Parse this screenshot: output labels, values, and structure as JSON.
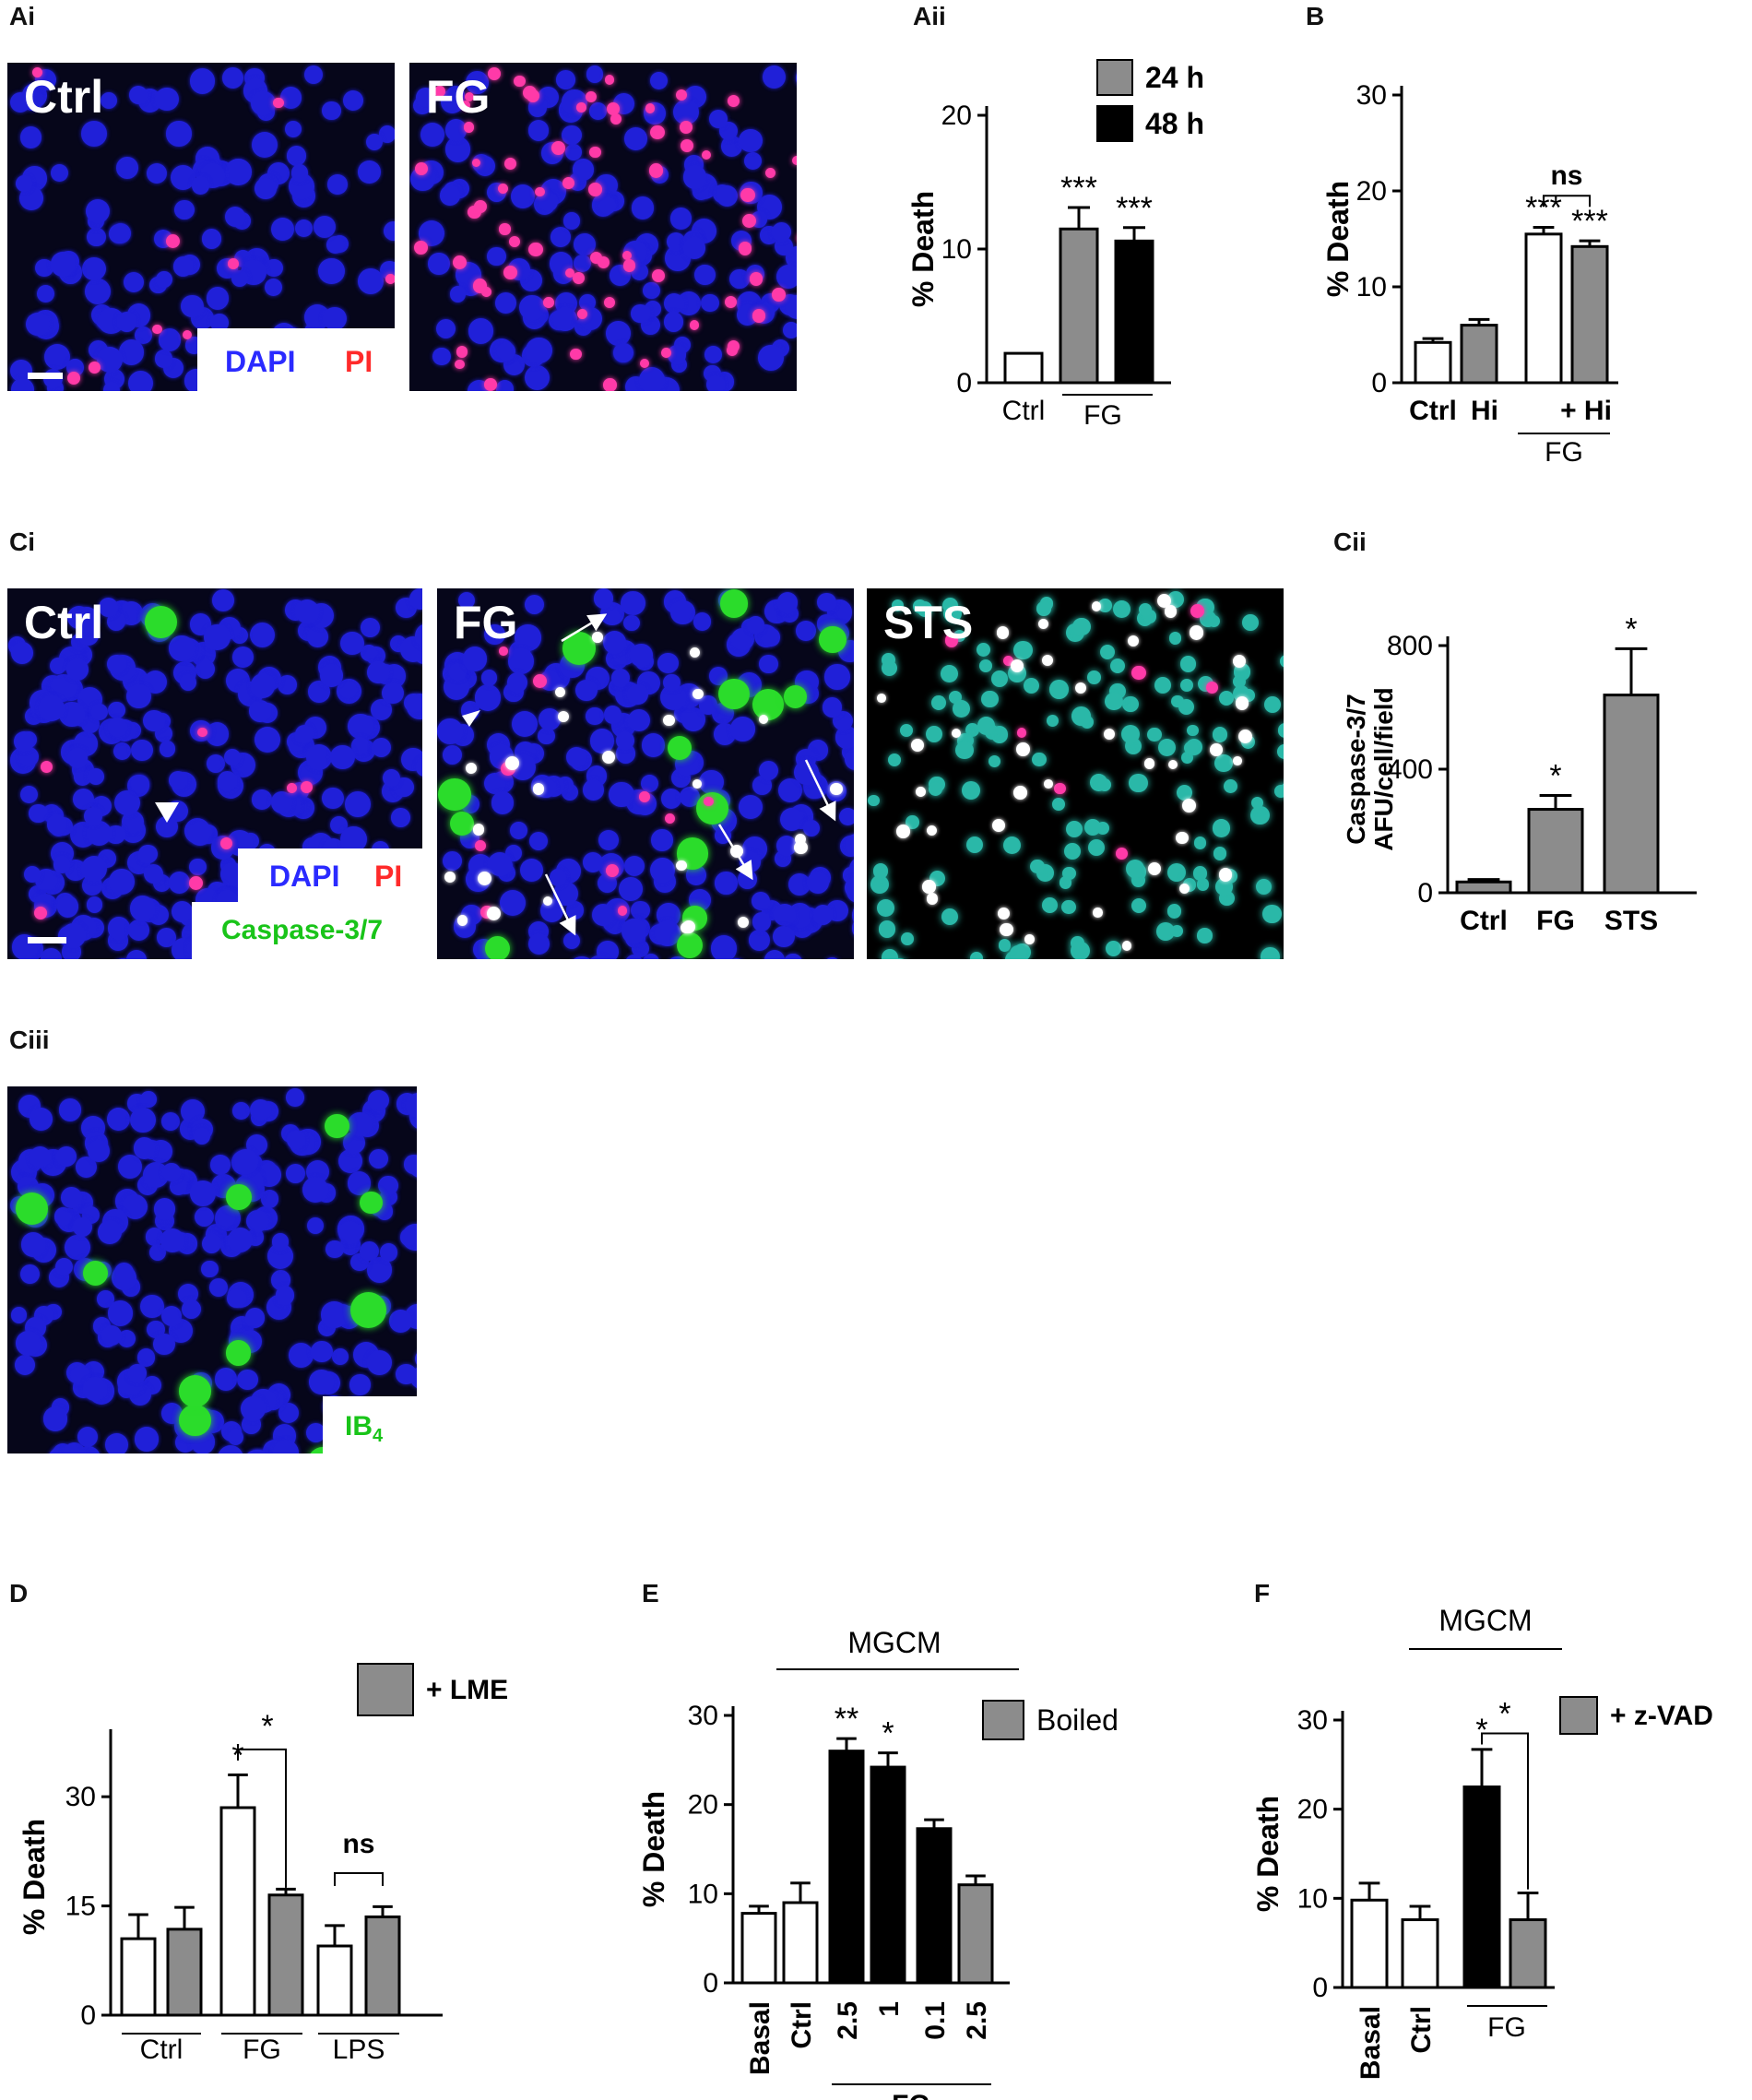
{
  "panel_labels": {
    "Ai": "Ai",
    "Aii": "Aii",
    "B": "B",
    "Ci": "Ci",
    "Cii": "Cii",
    "Ciii": "Ciii",
    "D": "D",
    "E": "E",
    "F": "F"
  },
  "micrographs": {
    "ai_ctrl": {
      "condition": "Ctrl"
    },
    "ai_fg": {
      "condition": "FG"
    },
    "ai_legend": {
      "dapi": "DAPI",
      "pi": "PI"
    },
    "ci_ctrl": {
      "condition": "Ctrl"
    },
    "ci_fg": {
      "condition": "FG"
    },
    "ci_sts": {
      "condition": "STS"
    },
    "ci_legend": {
      "dapi": "DAPI",
      "pi": "PI",
      "caspase": "Caspase-3/7"
    },
    "ciii_legend": {
      "ib": "IB",
      "ib_sub": "4"
    }
  },
  "colors": {
    "white_bar": "#ffffff",
    "grey_bar": "#8c8c8c",
    "black_bar": "#000000",
    "dapi": "#2a2aff",
    "pi": "#ff2a2a",
    "caspase": "#19c419"
  },
  "chart_data": [
    {
      "id": "Aii",
      "type": "bar",
      "ylabel": "% Death",
      "ylim": [
        0,
        20
      ],
      "yticks": [
        "0",
        "10",
        "20"
      ],
      "bars": [
        {
          "category": "Ctrl",
          "value": 2.2,
          "error": 0,
          "fill": "white",
          "star": ""
        },
        {
          "category": "FG",
          "series": "24 h",
          "value": 11.5,
          "error": 1.6,
          "fill": "grey",
          "star": "***"
        },
        {
          "category": "FG",
          "series": "48 h",
          "value": 10.6,
          "error": 1.0,
          "fill": "black",
          "star": "***"
        }
      ],
      "xlabels": [
        "Ctrl"
      ],
      "group_label": "FG",
      "legend": [
        {
          "name": "24 h",
          "fill": "grey"
        },
        {
          "name": "48 h",
          "fill": "black"
        }
      ]
    },
    {
      "id": "B",
      "type": "bar",
      "ylabel": "% Death",
      "ylim": [
        0,
        30
      ],
      "yticks": [
        "0",
        "10",
        "20",
        "30"
      ],
      "bars": [
        {
          "category": "Ctrl",
          "value": 4.2,
          "error": 0.4,
          "fill": "white",
          "star": ""
        },
        {
          "category": "Hi",
          "value": 6.0,
          "error": 0.6,
          "fill": "grey",
          "star": ""
        },
        {
          "category": "FG",
          "value": 15.5,
          "error": 0.7,
          "fill": "white",
          "star": "***"
        },
        {
          "category": "+ Hi",
          "value": 14.2,
          "error": 0.6,
          "fill": "grey",
          "star": "***"
        }
      ],
      "xlabels": [
        "Ctrl",
        "Hi",
        "+ Hi"
      ],
      "group_label": "FG",
      "comparison": "ns"
    },
    {
      "id": "Cii",
      "type": "bar",
      "ylabel_lines": [
        "Caspase-3/7",
        "AFU/cell/field"
      ],
      "ylim": [
        0,
        800
      ],
      "yticks": [
        "0",
        "400",
        "800"
      ],
      "bars": [
        {
          "category": "Ctrl",
          "value": 35,
          "error": 8,
          "fill": "grey",
          "star": ""
        },
        {
          "category": "FG",
          "value": 270,
          "error": 45,
          "fill": "grey",
          "star": "*"
        },
        {
          "category": "STS",
          "value": 640,
          "error": 150,
          "fill": "grey",
          "star": "*"
        }
      ],
      "xlabels": [
        "Ctrl",
        "FG",
        "STS"
      ]
    },
    {
      "id": "D",
      "type": "bar",
      "ylabel": "% Death",
      "ylim": [
        0,
        38
      ],
      "yticks": [
        "0",
        "15",
        "30"
      ],
      "bars": [
        {
          "category": "Ctrl",
          "value": 10.5,
          "error": 3.3,
          "fill": "white",
          "star": ""
        },
        {
          "category": "Ctrl + LME",
          "value": 11.8,
          "error": 3.0,
          "fill": "grey",
          "star": ""
        },
        {
          "category": "FG",
          "value": 28.5,
          "error": 4.5,
          "fill": "white",
          "star": "*"
        },
        {
          "category": "FG + LME",
          "value": 16.5,
          "error": 0.8,
          "fill": "grey",
          "star": ""
        },
        {
          "category": "LPS",
          "value": 9.5,
          "error": 2.8,
          "fill": "white",
          "star": ""
        },
        {
          "category": "LPS + LME",
          "value": 13.5,
          "error": 1.4,
          "fill": "grey",
          "star": ""
        }
      ],
      "xlabels": [
        "Ctrl",
        "FG",
        "LPS"
      ],
      "legend": [
        {
          "name": "+ LME",
          "fill": "grey"
        }
      ],
      "comparisons": [
        "*",
        "ns"
      ]
    },
    {
      "id": "E",
      "type": "bar",
      "ylabel": "% Death",
      "ylim": [
        0,
        30
      ],
      "yticks": [
        "0",
        "10",
        "20",
        "30"
      ],
      "bars": [
        {
          "category": "Basal",
          "value": 7.8,
          "error": 0.8,
          "fill": "white",
          "star": ""
        },
        {
          "category": "Ctrl",
          "value": 9.0,
          "error": 2.2,
          "fill": "white",
          "star": ""
        },
        {
          "category": "2.5",
          "value": 26.0,
          "error": 1.4,
          "fill": "black",
          "star": "**"
        },
        {
          "category": "1",
          "value": 24.2,
          "error": 1.6,
          "fill": "black",
          "star": "*"
        },
        {
          "category": "0.1",
          "value": 17.3,
          "error": 1.0,
          "fill": "black",
          "star": ""
        },
        {
          "category": "2.5",
          "value": 11.0,
          "error": 1.0,
          "fill": "grey",
          "star": ""
        }
      ],
      "xlabels": [
        "Basal",
        "Ctrl",
        "2.5",
        "1",
        "0.1",
        "2.5"
      ],
      "group_label": "FG",
      "top_label": "MGCM",
      "legend": [
        {
          "name": "Boiled",
          "fill": "grey"
        }
      ]
    },
    {
      "id": "F",
      "type": "bar",
      "ylabel": "% Death",
      "ylim": [
        0,
        30
      ],
      "yticks": [
        "0",
        "10",
        "20",
        "30"
      ],
      "bars": [
        {
          "category": "Basal",
          "value": 9.8,
          "error": 1.9,
          "fill": "white",
          "star": ""
        },
        {
          "category": "Ctrl",
          "value": 7.6,
          "error": 1.5,
          "fill": "white",
          "star": ""
        },
        {
          "category": "FG",
          "value": 22.5,
          "error": 4.2,
          "fill": "black",
          "star": "*"
        },
        {
          "category": "FG + z-VAD",
          "value": 7.6,
          "error": 3.0,
          "fill": "grey",
          "star": ""
        }
      ],
      "xlabels": [
        "Basal",
        "Ctrl"
      ],
      "group_label": "FG",
      "top_label": "MGCM",
      "legend": [
        {
          "name": "+ z-VAD",
          "fill": "grey"
        }
      ],
      "comparisons": [
        "*"
      ]
    }
  ]
}
